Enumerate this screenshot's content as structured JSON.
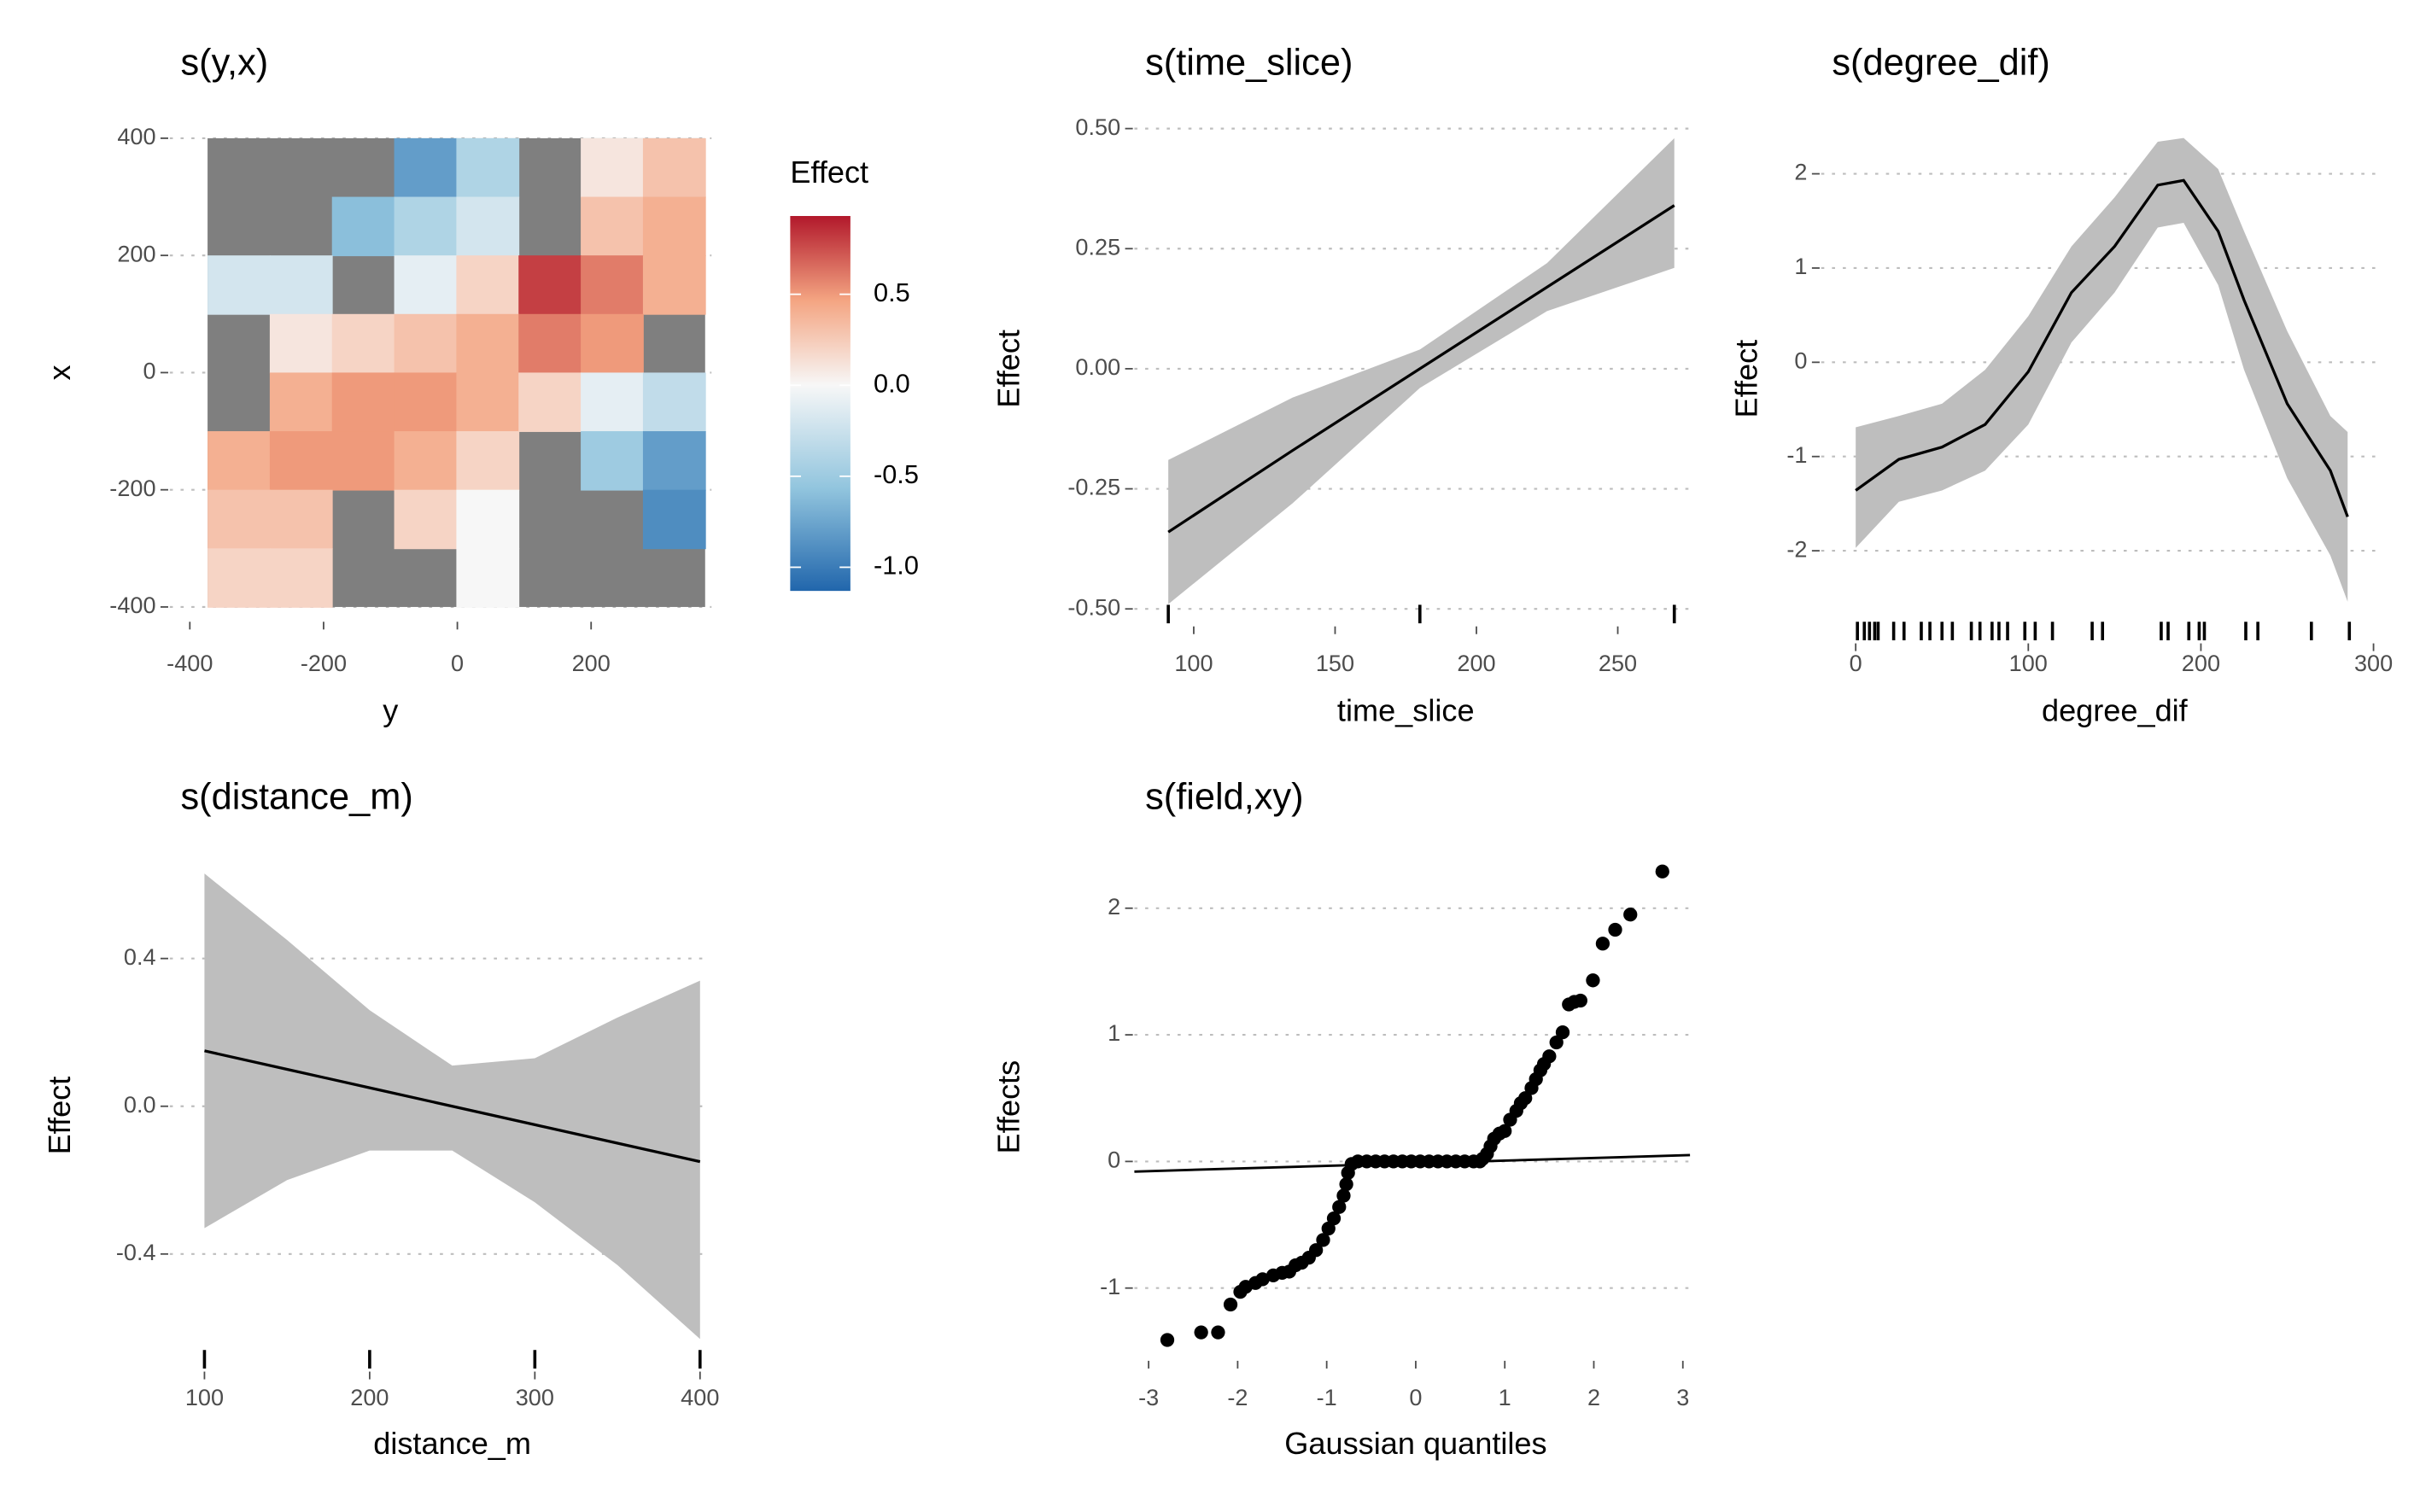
{
  "chart_data": [
    {
      "type": "heatmap",
      "title": "s(y,x)",
      "xlabel": "y",
      "ylabel": "x",
      "x": [
        -327,
        -234,
        -141,
        -48,
        45,
        138,
        231,
        324
      ],
      "y": [
        350,
        250,
        150,
        50,
        -50,
        -150,
        -250,
        -350
      ],
      "values": [
        [
          null,
          null,
          null,
          -0.8,
          -0.4,
          null,
          0.1,
          0.3
        ],
        [
          null,
          null,
          -0.6,
          -0.4,
          -0.2,
          null,
          0.3,
          0.4
        ],
        [
          -0.2,
          -0.2,
          null,
          -0.1,
          0.2,
          0.8,
          0.6,
          0.4
        ],
        [
          null,
          0.1,
          0.2,
          0.3,
          0.4,
          0.6,
          0.5,
          null
        ],
        [
          null,
          0.4,
          0.5,
          0.5,
          0.4,
          0.2,
          -0.1,
          -0.3
        ],
        [
          0.4,
          0.5,
          0.5,
          0.4,
          0.2,
          null,
          -0.5,
          -0.8
        ],
        [
          0.3,
          0.3,
          null,
          0.2,
          0.0,
          null,
          null,
          -0.9
        ],
        [
          0.2,
          0.2,
          null,
          null,
          0.0,
          null,
          null,
          null
        ]
      ],
      "xlim": [
        -430,
        380
      ],
      "ylim": [
        -420,
        420
      ],
      "xticks": [
        -400,
        -200,
        0,
        200
      ],
      "yticks": [
        -400,
        -200,
        0,
        200,
        400
      ],
      "missing_color": "#7f7f7f",
      "legend": {
        "title": "Effect",
        "clim": [
          -1.13,
          0.93
        ],
        "colors": [
          "#2166ac",
          "#92c5de",
          "#f7f7f7",
          "#f4a582",
          "#b2182b"
        ],
        "ticks": [
          0.5,
          {
            "value": 0,
            "label": "0.0"
          },
          -0.5,
          {
            "value": -1,
            "label": "-1.0"
          }
        ]
      }
    },
    {
      "type": "line",
      "title": "s(time_slice)",
      "xlabel": "time_slice",
      "ylabel": "Effect",
      "x": [
        91,
        135,
        180,
        225,
        270
      ],
      "values": [
        -0.34,
        -0.17,
        0.0,
        0.17,
        0.34
      ],
      "upper": [
        -0.19,
        -0.06,
        0.04,
        0.22,
        0.48
      ],
      "lower": [
        -0.49,
        -0.28,
        -0.04,
        0.12,
        0.21
      ],
      "rug": [
        91,
        180,
        270
      ],
      "color": "#000000",
      "band_color": "#bebebe",
      "xlim": [
        79,
        275
      ],
      "ylim": [
        -0.53,
        0.53
      ],
      "xticks": [
        100,
        150,
        200,
        250
      ],
      "yticks": [
        {
          "value": 0.5,
          "label": "0.50"
        },
        0.25,
        {
          "value": 0,
          "label": "0.00"
        },
        -0.25,
        {
          "value": -0.5,
          "label": "-0.50"
        }
      ]
    },
    {
      "type": "line",
      "title": "s(degree_dif)",
      "xlabel": "degree_dif",
      "ylabel": "Effect",
      "x": [
        0,
        25,
        50,
        75,
        100,
        125,
        150,
        175,
        190,
        210,
        225,
        250,
        275,
        285
      ],
      "values": [
        -1.36,
        -1.03,
        -0.9,
        -0.66,
        -0.1,
        0.74,
        1.23,
        1.88,
        1.93,
        1.39,
        0.66,
        -0.44,
        -1.15,
        -1.64
      ],
      "upper": [
        -0.69,
        -0.57,
        -0.44,
        -0.08,
        0.49,
        1.23,
        1.75,
        2.34,
        2.38,
        2.05,
        1.39,
        0.33,
        -0.57,
        -0.74
      ],
      "lower": [
        -1.97,
        -1.48,
        -1.36,
        -1.15,
        -0.66,
        0.21,
        0.74,
        1.43,
        1.48,
        0.82,
        -0.08,
        -1.23,
        -2.05,
        -2.54
      ],
      "rug": [
        1,
        5,
        8,
        11,
        13,
        22,
        28,
        38,
        43,
        50,
        56,
        67,
        72,
        79,
        83,
        88,
        98,
        104,
        114,
        137,
        143,
        177,
        181,
        193,
        199,
        202,
        226,
        233,
        264,
        286
      ],
      "color": "#000000",
      "band_color": "#bebebe",
      "xlim": [
        -20,
        301
      ],
      "ylim": [
        -2.95,
        2.6
      ],
      "xticks": [
        0,
        100,
        200,
        300
      ],
      "yticks": [
        -2,
        -1,
        0,
        1,
        2
      ]
    },
    {
      "type": "line",
      "title": "s(distance_m)",
      "xlabel": "distance_m",
      "ylabel": "Effect",
      "x": [
        100,
        150,
        200,
        250,
        300,
        350,
        400
      ],
      "values": [
        0.15,
        0.1,
        0.05,
        0.0,
        -0.05,
        -0.1,
        -0.15
      ],
      "upper": [
        0.63,
        0.45,
        0.26,
        0.11,
        0.13,
        0.24,
        0.34
      ],
      "lower": [
        -0.33,
        -0.2,
        -0.12,
        -0.12,
        -0.26,
        -0.43,
        -0.63
      ],
      "rug": [
        100,
        200,
        300,
        400
      ],
      "color": "#000000",
      "band_color": "#bebebe",
      "xlim": [
        79,
        406
      ],
      "ylim": [
        -0.71,
        0.66
      ],
      "xticks": [
        100,
        200,
        300,
        400
      ],
      "yticks": [
        {
          "value": 0.4,
          "label": "0.4"
        },
        {
          "value": 0,
          "label": "0.0"
        },
        {
          "value": -0.4,
          "label": "-0.4"
        }
      ]
    },
    {
      "type": "scatter",
      "title": "s(field,xy)",
      "xlabel": "Gaussian quantiles",
      "ylabel": "Effects",
      "x": [
        -2.79,
        -2.41,
        -2.22,
        -2.08,
        -1.97,
        -1.91,
        -1.8,
        -1.72,
        -1.6,
        -1.5,
        -1.42,
        -1.35,
        -1.28,
        -1.2,
        -1.12,
        -1.04,
        -0.98,
        -0.92,
        -0.86,
        -0.81,
        -0.78,
        -0.76,
        -0.72,
        -0.65,
        -0.55,
        -0.45,
        -0.35,
        -0.25,
        -0.15,
        -0.05,
        0.05,
        0.15,
        0.25,
        0.35,
        0.45,
        0.55,
        0.65,
        0.72,
        0.75,
        0.8,
        0.84,
        0.88,
        0.94,
        1.0,
        1.06,
        1.13,
        1.18,
        1.23,
        1.3,
        1.35,
        1.4,
        1.44,
        1.5,
        1.58,
        1.65,
        1.72,
        1.78,
        1.85,
        1.99,
        2.1,
        2.24,
        2.41,
        2.77
      ],
      "values": [
        -1.41,
        -1.35,
        -1.35,
        -1.13,
        -1.03,
        -0.99,
        -0.96,
        -0.93,
        -0.9,
        -0.88,
        -0.87,
        -0.82,
        -0.8,
        -0.76,
        -0.7,
        -0.62,
        -0.53,
        -0.45,
        -0.36,
        -0.27,
        -0.18,
        -0.09,
        -0.02,
        0,
        0,
        0,
        0,
        0,
        0,
        0,
        0,
        0,
        0,
        0,
        0,
        0,
        0,
        0.0,
        0.02,
        0.06,
        0.12,
        0.18,
        0.22,
        0.24,
        0.33,
        0.4,
        0.46,
        0.5,
        0.58,
        0.65,
        0.72,
        0.77,
        0.83,
        0.94,
        1.02,
        1.24,
        1.26,
        1.27,
        1.43,
        1.72,
        1.83,
        1.95,
        2.29
      ],
      "ref_line": {
        "x": [
          -3.16,
          3.08
        ],
        "y": [
          -0.08,
          0.05
        ]
      },
      "color": "#000000",
      "xlim": [
        -3.16,
        3.08
      ],
      "ylim": [
        -1.55,
        2.41
      ],
      "xticks": [
        -3,
        -2,
        -1,
        0,
        1,
        2,
        3
      ],
      "yticks": [
        -1,
        0,
        1,
        2
      ]
    }
  ]
}
